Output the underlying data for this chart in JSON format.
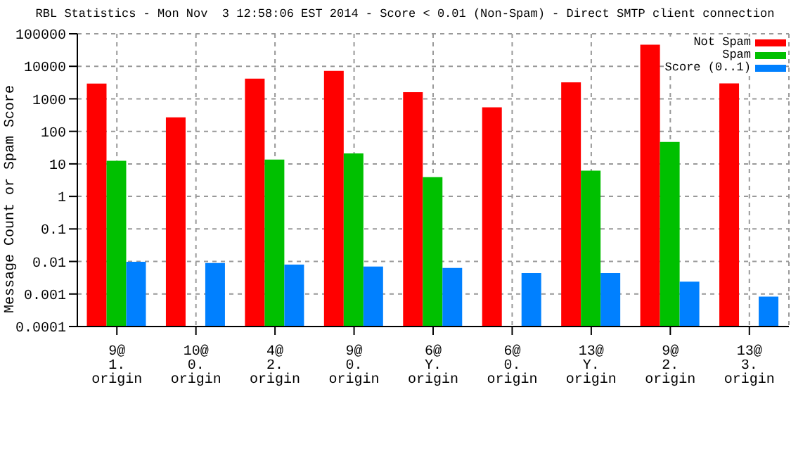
{
  "chart_data": {
    "type": "bar",
    "title": "RBL Statistics - Mon Nov  3 12:58:06 EST 2014 - Score < 0.01 (Non-Spam) - Direct SMTP client connection",
    "ylabel": "Message Count or Spam Score",
    "categories": [
      "9@\n1.\norigin",
      "10@\n0.\norigin",
      "4@\n2.\norigin",
      "9@\n0.\norigin",
      "6@\nY.\norigin",
      "6@\n0.\norigin",
      "13@\nY.\norigin",
      "9@\n2.\norigin",
      "13@\n3.\norigin"
    ],
    "series": [
      {
        "name": "Not Spam",
        "color": "#ff0000",
        "values": [
          2950,
          270,
          4200,
          7200,
          1600,
          550,
          3200,
          46000,
          3000
        ]
      },
      {
        "name": "Spam",
        "color": "#00c000",
        "values": [
          12.5,
          null,
          13.5,
          21,
          3.9,
          null,
          6.2,
          47,
          null
        ]
      },
      {
        "name": "Score (0..1)",
        "color": "#0080ff",
        "values": [
          0.0098,
          0.009,
          0.008,
          0.007,
          0.0063,
          0.0044,
          0.0044,
          0.0024,
          0.00083
        ]
      }
    ],
    "log": true,
    "ylim": [
      0.0001,
      100000
    ],
    "yticks": [
      0.0001,
      0.001,
      0.01,
      0.1,
      1,
      10,
      100,
      1000,
      10000,
      100000
    ],
    "grid": true,
    "legend": "top right"
  }
}
